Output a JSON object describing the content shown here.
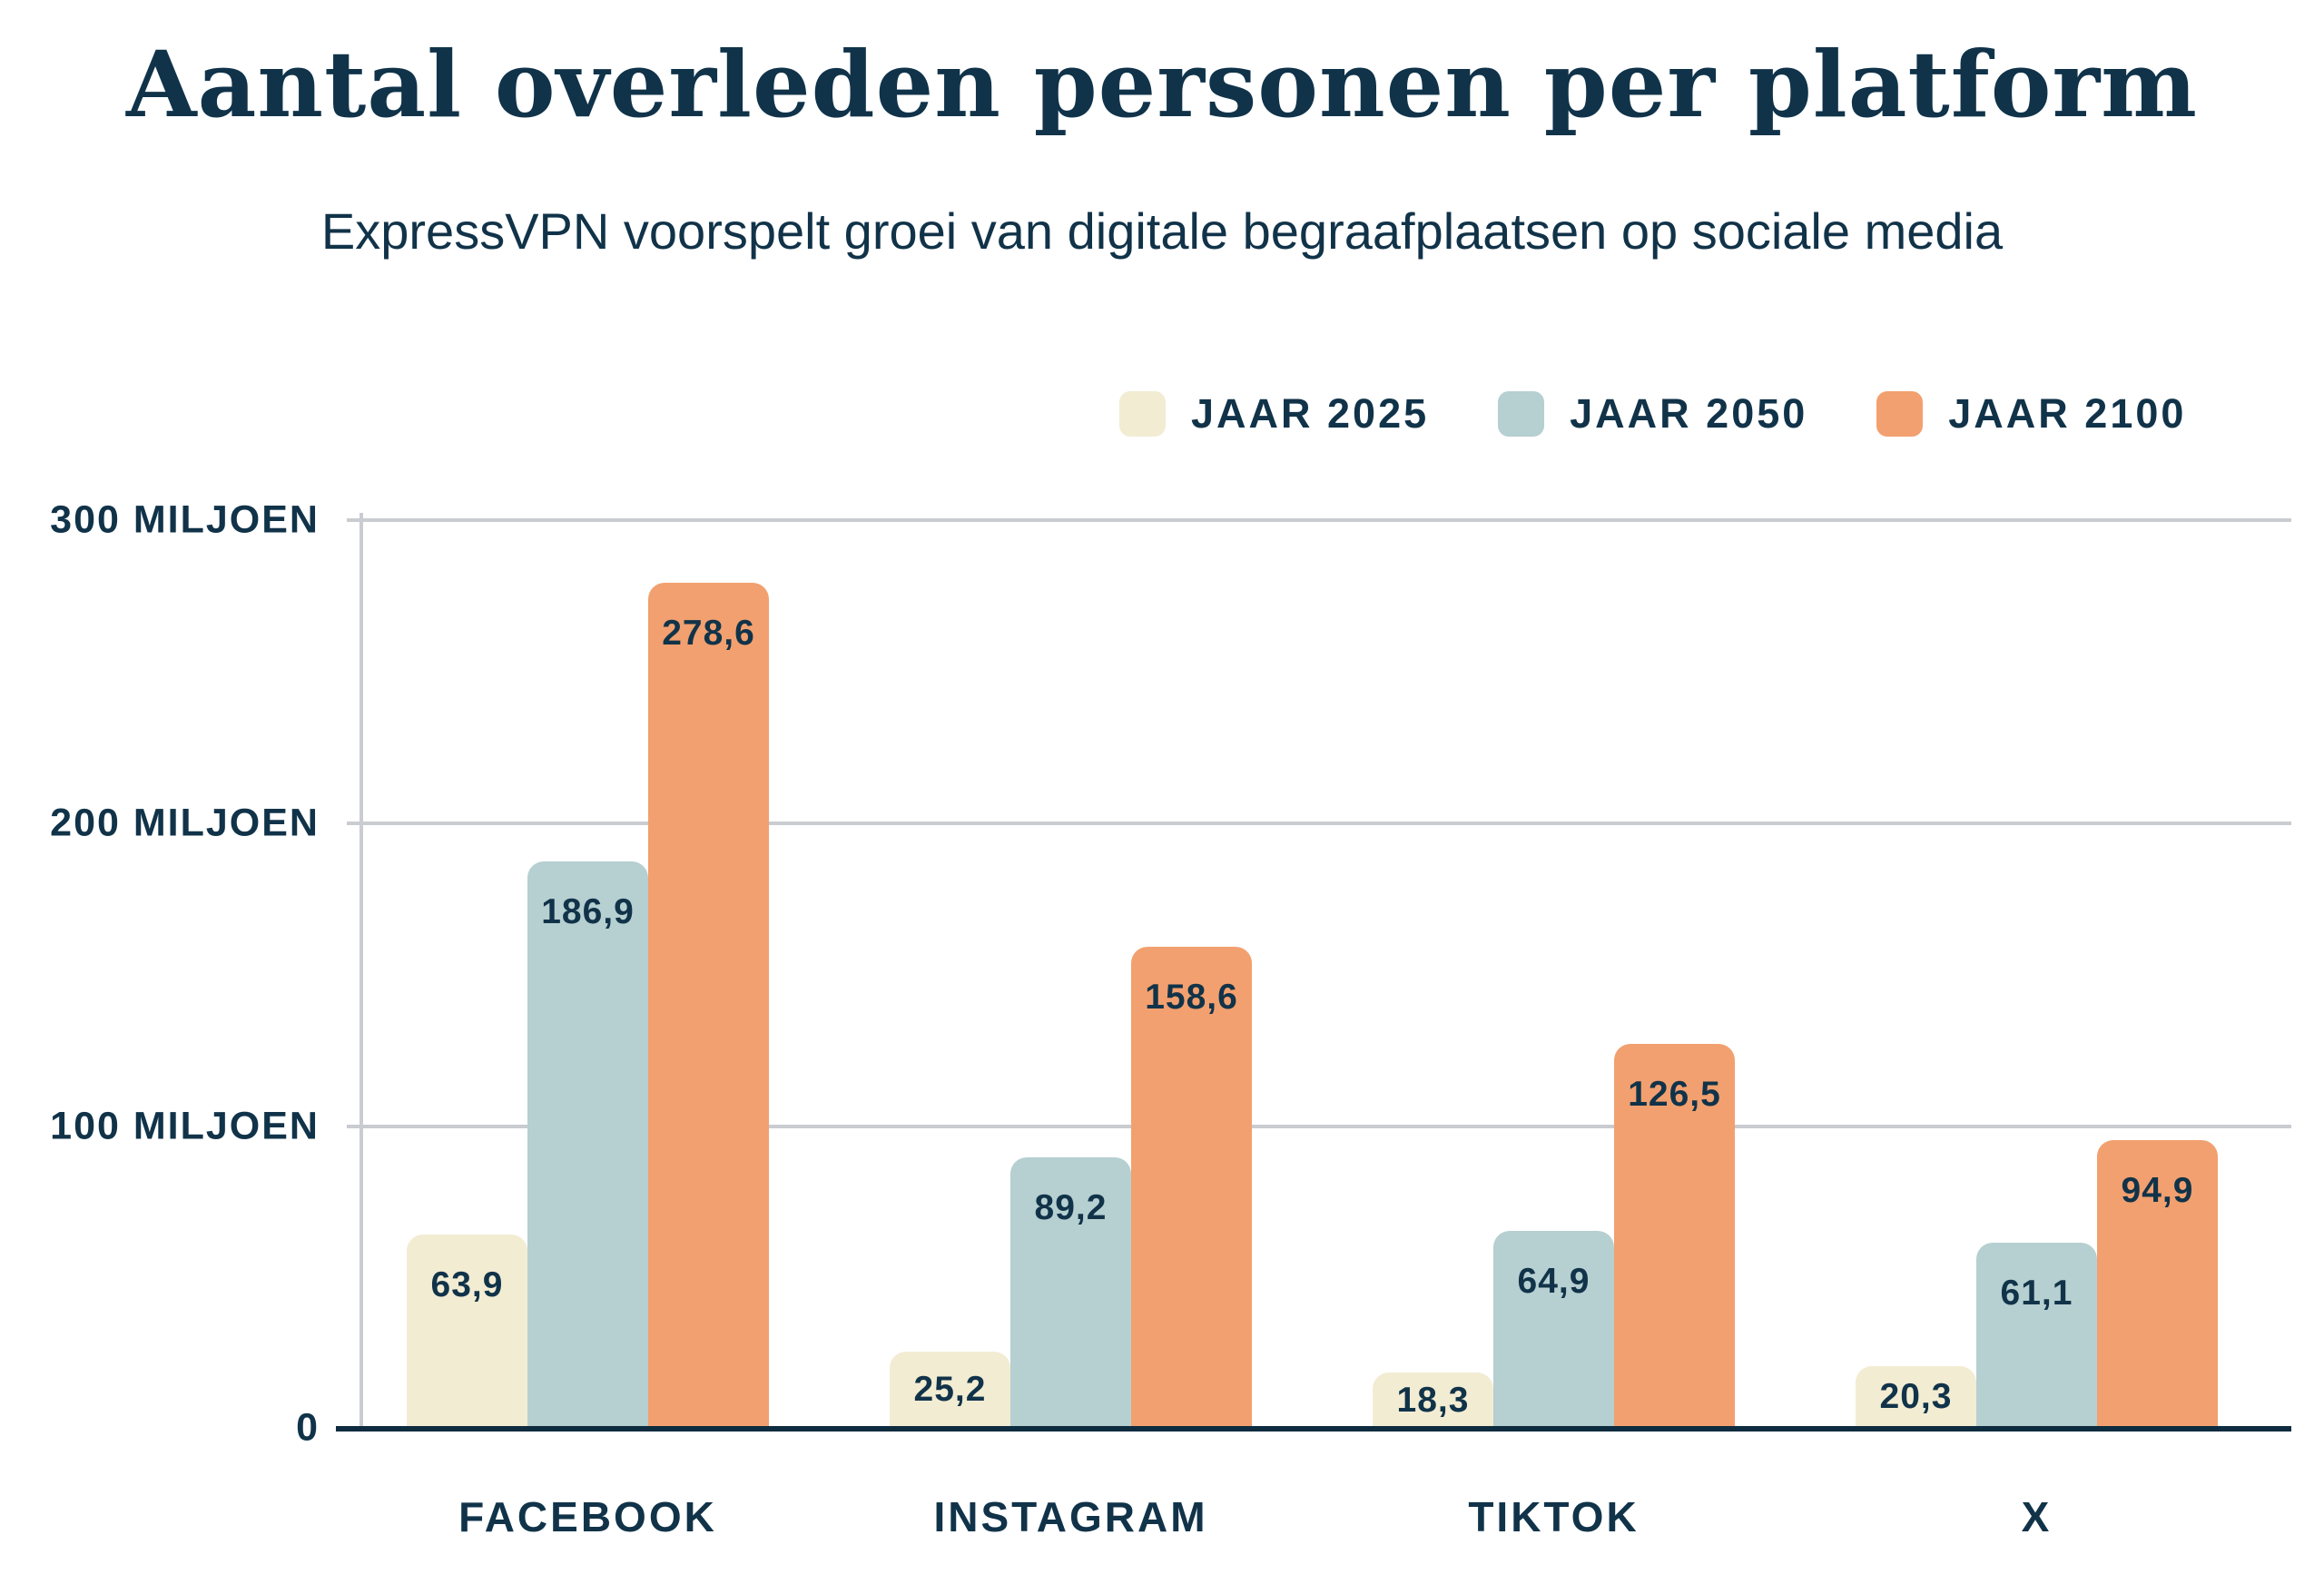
{
  "title": "Aantal overleden personen per platform",
  "subtitle": "ExpressVPN voorspelt groei van digitale begraafplaatsen op sociale media",
  "legend": [
    {
      "label": "JAAR 2025",
      "color": "#F2ECD3"
    },
    {
      "label": "JAAR 2050",
      "color": "#B6CFD1"
    },
    {
      "label": "JAAR 2100",
      "color": "#F2A06F"
    }
  ],
  "colors": {
    "text_navy": "#113349",
    "baseline_navy": "#0E2C3F",
    "gridline_gray": "#C9CCD1",
    "background": "#FFFFFF",
    "series_2025": "#F2ECD3",
    "series_2050": "#B6CFD1",
    "series_2100": "#F2A06F"
  },
  "y_axis": {
    "tick_labels": [
      "300 MILJOEN",
      "200 MILJOEN",
      "100 MILJOEN",
      "0"
    ],
    "tick_values": [
      300,
      200,
      100,
      0
    ]
  },
  "chart_data": {
    "type": "bar",
    "title": "Aantal overleden personen per platform",
    "subtitle": "ExpressVPN voorspelt groei van digitale begraafplaatsen op sociale media",
    "categories": [
      "FACEBOOK",
      "INSTAGRAM",
      "TIKTOK",
      "X"
    ],
    "series": [
      {
        "name": "JAAR 2025",
        "color": "#F2ECD3",
        "values": [
          63.9,
          25.2,
          18.3,
          20.3
        ],
        "value_labels": [
          "63,9",
          "25,2",
          "18,3",
          "20,3"
        ]
      },
      {
        "name": "JAAR 2050",
        "color": "#B6CFD1",
        "values": [
          186.9,
          89.2,
          64.9,
          61.1
        ],
        "value_labels": [
          "186,9",
          "89,2",
          "64,9",
          "61,1"
        ]
      },
      {
        "name": "JAAR 2100",
        "color": "#F2A06F",
        "values": [
          278.6,
          158.6,
          126.5,
          94.9
        ],
        "value_labels": [
          "278,6",
          "158,6",
          "126,5",
          "94,9"
        ]
      }
    ],
    "xlabel": "",
    "ylabel": "miljoen",
    "ylim": [
      0,
      300
    ],
    "grid": true,
    "legend_position": "top-right"
  }
}
